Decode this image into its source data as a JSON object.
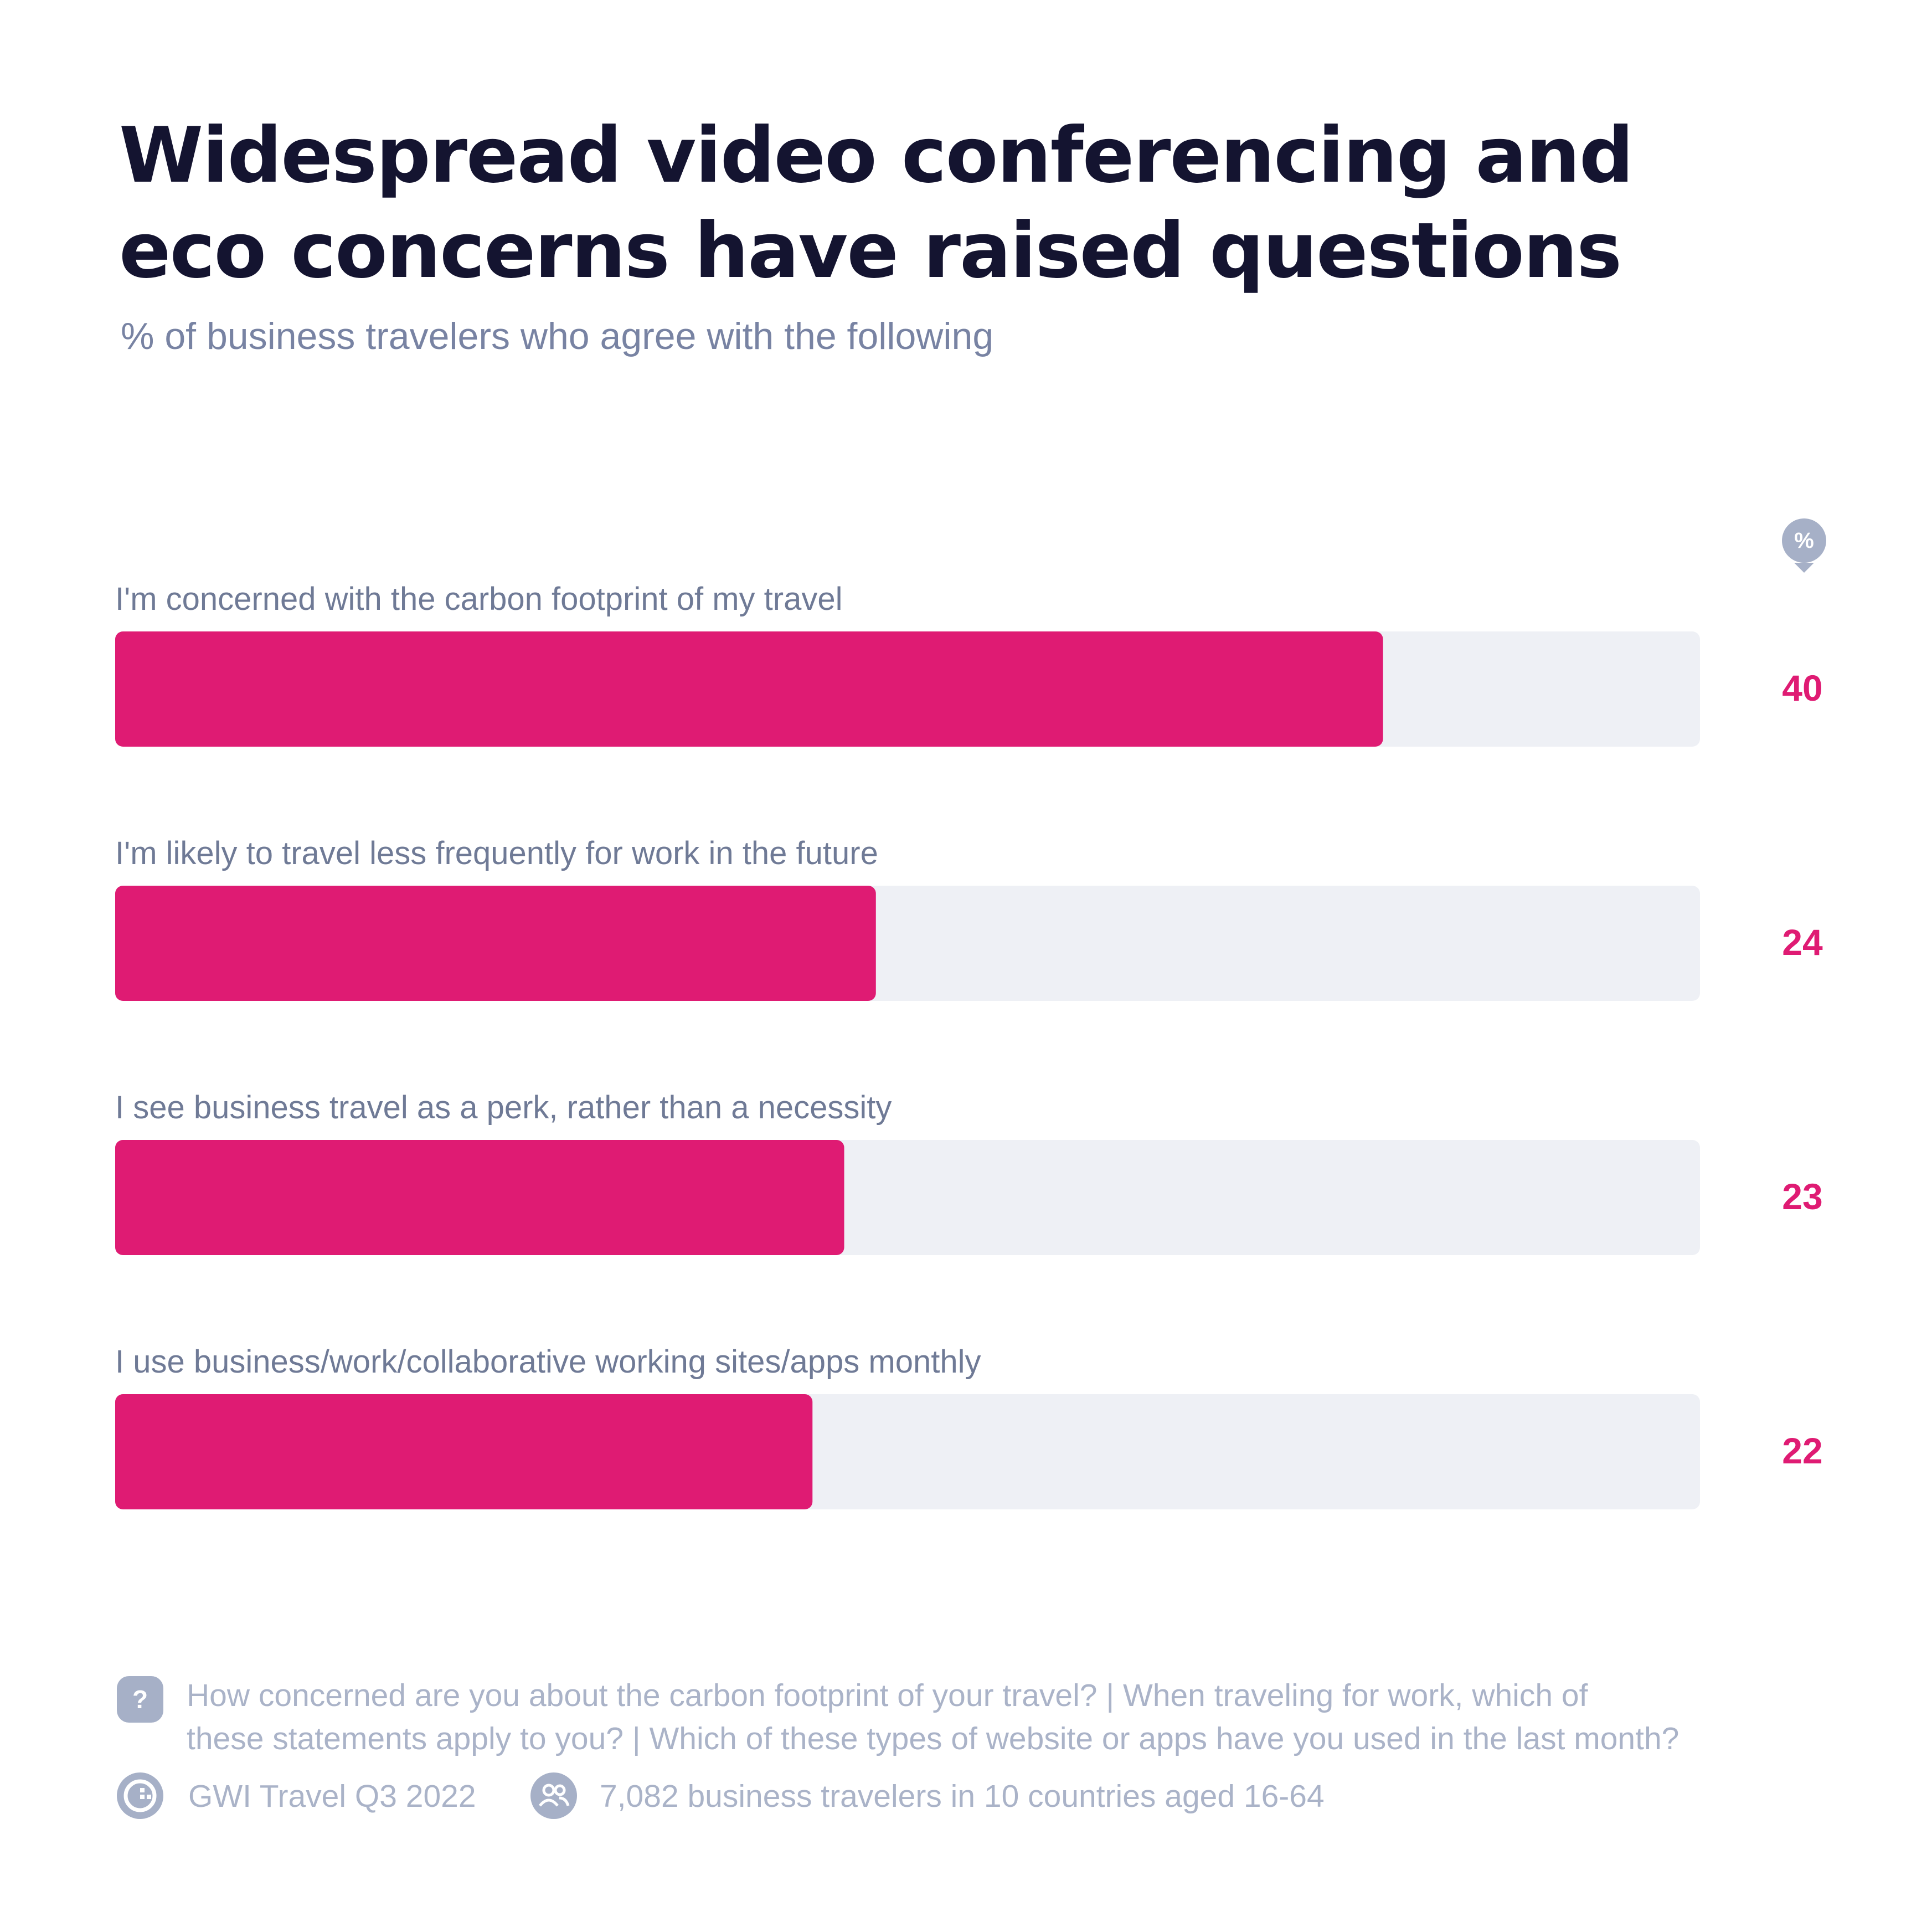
{
  "title_lines": [
    "Widespread video conferencing and",
    "eco concerns have raised questions"
  ],
  "subtitle": "% of business travelers who agree with the following",
  "unit_badge": "%",
  "chart_data": {
    "type": "bar",
    "orientation": "horizontal",
    "categories": [
      "I'm concerned with the carbon footprint of my travel",
      "I'm likely to travel less frequently for work in the future",
      "I see business travel as a perk, rather than a necessity",
      "I use business/work/collaborative working sites/apps monthly"
    ],
    "values": [
      40,
      24,
      23,
      22
    ],
    "xlim": [
      0,
      50
    ],
    "unit": "%",
    "grid": false,
    "colors": {
      "bar": "#df1b73",
      "track": "#eef0f5",
      "value_label": "#df1b73"
    }
  },
  "footer": {
    "question_icon": "question-icon",
    "question_lines": [
      "How concerned are you about the carbon footprint of your travel? | When traveling for work, which of",
      "these statements apply to you? | Which of these types of website or apps have you used in the last month?"
    ],
    "source_icon": "gwi-logo-icon",
    "source": "GWI Travel Q3 2022",
    "sample_icon": "people-icon",
    "sample": "7,082 business travelers in 10 countries aged 16-64"
  }
}
